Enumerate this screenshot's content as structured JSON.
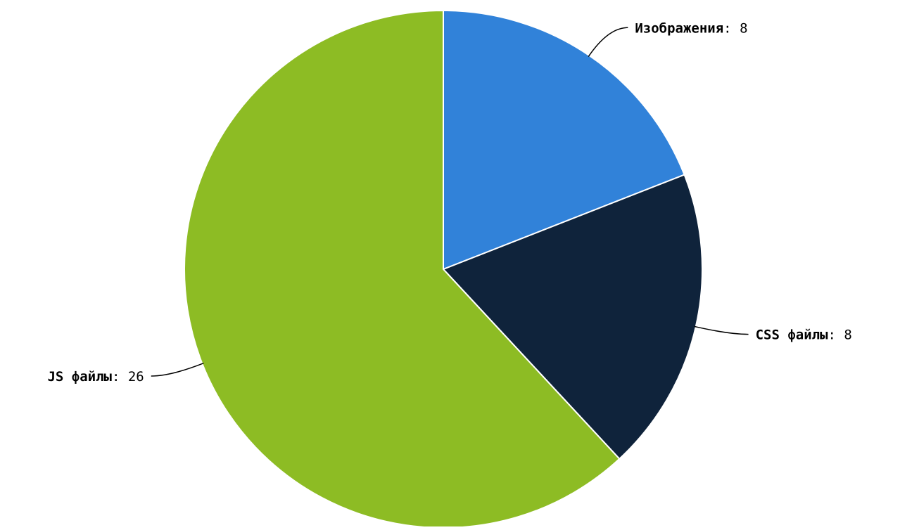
{
  "chart_data": {
    "type": "pie",
    "title": "",
    "slices": [
      {
        "label": "Изображения",
        "value": 8,
        "color": "#3182d9"
      },
      {
        "label": "CSS файлы",
        "value": 8,
        "color": "#0f233b"
      },
      {
        "label": "JS файлы",
        "value": 26,
        "color": "#8dbc24"
      }
    ],
    "label_separator": ":",
    "legend": "none",
    "start": "top",
    "direction": "clockwise"
  }
}
